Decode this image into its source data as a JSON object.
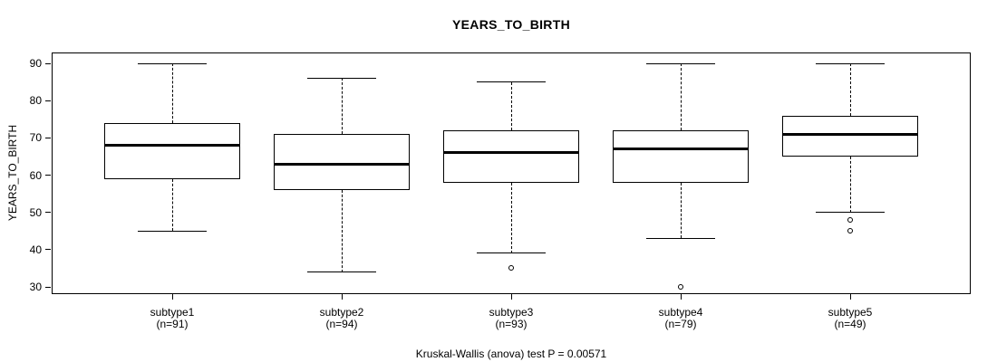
{
  "chart_data": {
    "type": "boxplot",
    "title": "YEARS_TO_BIRTH",
    "ylabel": "YEARS_TO_BIRTH",
    "xlabel": "",
    "caption": "Kruskal-Wallis (anova) test P = 0.00571",
    "ylim": [
      28,
      93
    ],
    "y_ticks": [
      30,
      40,
      50,
      60,
      70,
      80,
      90
    ],
    "grid": false,
    "legend": "none",
    "colors": {
      "box_border": "#000000",
      "median": "#000000",
      "whisker": "#000000",
      "background": "#ffffff"
    },
    "groups": [
      {
        "label": "subtype1",
        "sublabel": "(n=91)",
        "n": 91,
        "low": 45,
        "q1": 59,
        "median": 68,
        "q3": 74,
        "high": 90,
        "outliers": []
      },
      {
        "label": "subtype2",
        "sublabel": "(n=94)",
        "n": 94,
        "low": 34,
        "q1": 56,
        "median": 63,
        "q3": 71,
        "high": 86,
        "outliers": []
      },
      {
        "label": "subtype3",
        "sublabel": "(n=93)",
        "n": 93,
        "low": 39,
        "q1": 58,
        "median": 66,
        "q3": 72,
        "high": 85,
        "outliers": [
          35
        ]
      },
      {
        "label": "subtype4",
        "sublabel": "(n=79)",
        "n": 79,
        "low": 43,
        "q1": 58,
        "median": 67,
        "q3": 72,
        "high": 90,
        "outliers": [
          30
        ]
      },
      {
        "label": "subtype5",
        "sublabel": "(n=49)",
        "n": 49,
        "low": 50,
        "q1": 65,
        "median": 71,
        "q3": 76,
        "high": 90,
        "outliers": [
          48,
          45
        ]
      }
    ]
  }
}
